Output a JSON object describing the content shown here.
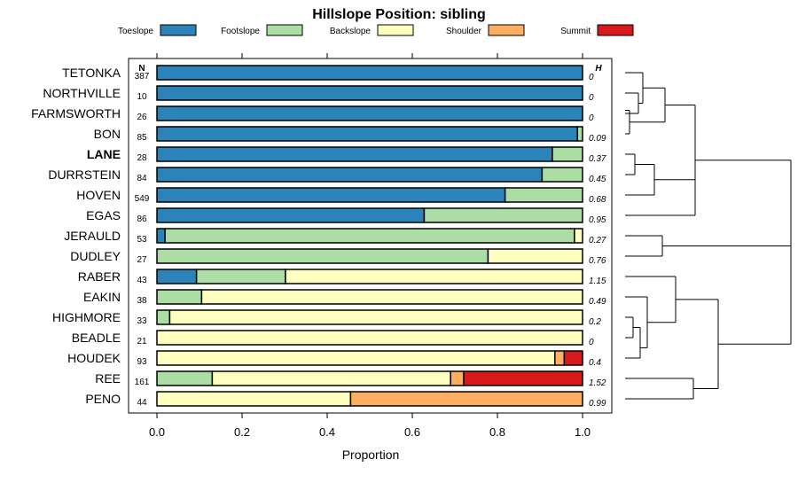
{
  "chart_data": {
    "type": "bar",
    "stacked": true,
    "orientation": "horizontal",
    "title": "Hillslope Position: sibling",
    "xlabel": "Proportion",
    "xlim": [
      0,
      1
    ],
    "x_ticks": [
      "0.0",
      "0.2",
      "0.4",
      "0.6",
      "0.8",
      "1.0"
    ],
    "x_tick_values": [
      0,
      0.2,
      0.4,
      0.6,
      0.8,
      1.0
    ],
    "n_header": "N",
    "h_header": "H",
    "legend_placement": "top",
    "series": [
      {
        "name": "Toeslope",
        "color": "#2b83ba"
      },
      {
        "name": "Footslope",
        "color": "#abdda4"
      },
      {
        "name": "Backslope",
        "color": "#ffffbf"
      },
      {
        "name": "Shoulder",
        "color": "#fdae61"
      },
      {
        "name": "Summit",
        "color": "#d7191c"
      }
    ],
    "rows": [
      {
        "label": "TETONKA",
        "n": "387",
        "h": "0",
        "bold": false,
        "values": [
          1.0,
          0,
          0,
          0,
          0
        ]
      },
      {
        "label": "NORTHVILLE",
        "n": "10",
        "h": "0",
        "bold": false,
        "values": [
          1.0,
          0,
          0,
          0,
          0
        ]
      },
      {
        "label": "FARMSWORTH",
        "n": "26",
        "h": "0",
        "bold": false,
        "values": [
          1.0,
          0,
          0,
          0,
          0
        ]
      },
      {
        "label": "BON",
        "n": "85",
        "h": "0.09",
        "bold": false,
        "values": [
          0.988,
          0.012,
          0,
          0,
          0
        ]
      },
      {
        "label": "LANE",
        "n": "28",
        "h": "0.37",
        "bold": true,
        "values": [
          0.929,
          0.071,
          0,
          0,
          0
        ]
      },
      {
        "label": "DURRSTEIN",
        "n": "84",
        "h": "0.45",
        "bold": false,
        "values": [
          0.905,
          0.095,
          0,
          0,
          0
        ]
      },
      {
        "label": "HOVEN",
        "n": "549",
        "h": "0.68",
        "bold": false,
        "values": [
          0.818,
          0.182,
          0,
          0,
          0
        ]
      },
      {
        "label": "EGAS",
        "n": "86",
        "h": "0.95",
        "bold": false,
        "values": [
          0.628,
          0.372,
          0,
          0,
          0
        ]
      },
      {
        "label": "JERAULD",
        "n": "53",
        "h": "0.27",
        "bold": false,
        "values": [
          0.019,
          0.962,
          0.019,
          0,
          0
        ]
      },
      {
        "label": "DUDLEY",
        "n": "27",
        "h": "0.76",
        "bold": false,
        "values": [
          0,
          0.778,
          0.222,
          0,
          0
        ]
      },
      {
        "label": "RABER",
        "n": "43",
        "h": "1.15",
        "bold": false,
        "values": [
          0.093,
          0.209,
          0.698,
          0,
          0
        ]
      },
      {
        "label": "EAKIN",
        "n": "38",
        "h": "0.49",
        "bold": false,
        "values": [
          0,
          0.105,
          0.895,
          0,
          0
        ]
      },
      {
        "label": "HIGHMORE",
        "n": "33",
        "h": "0.2",
        "bold": false,
        "values": [
          0,
          0.03,
          0.97,
          0,
          0
        ]
      },
      {
        "label": "BEADLE",
        "n": "21",
        "h": "0",
        "bold": false,
        "values": [
          0,
          0,
          1.0,
          0,
          0
        ]
      },
      {
        "label": "HOUDEK",
        "n": "93",
        "h": "0.4",
        "bold": false,
        "values": [
          0,
          0,
          0.935,
          0.022,
          0.043
        ]
      },
      {
        "label": "REE",
        "n": "161",
        "h": "1.52",
        "bold": false,
        "values": [
          0,
          0.13,
          0.56,
          0.031,
          0.279
        ]
      },
      {
        "label": "PENO",
        "n": "44",
        "h": "0.99",
        "bold": false,
        "values": [
          0,
          0,
          0.455,
          0.545,
          0
        ]
      }
    ]
  }
}
